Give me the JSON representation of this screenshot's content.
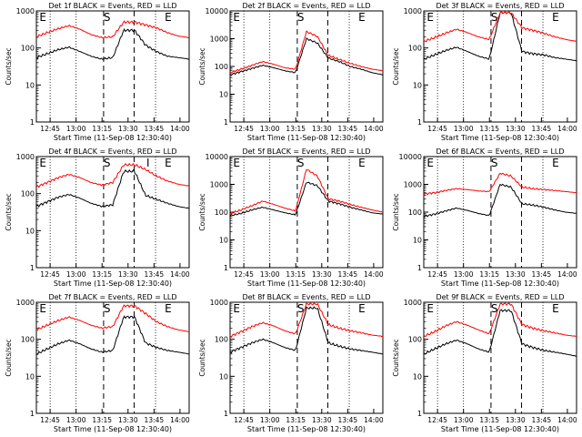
{
  "chart_data": [
    {
      "type": "line",
      "title": "Det 1f BLACK = Events, RED = LLD",
      "xlabel": "Start Time (11-Sep-08 12:30:40)",
      "ylabel": "Counts/sec",
      "ylim": [
        1,
        1000
      ],
      "yscale": "log",
      "xticklabels": [
        "12:45",
        "13:00",
        "13:15",
        "13:30",
        "13:45",
        "14:00"
      ],
      "yticklabels": [
        "1",
        "10",
        "100",
        "1000"
      ],
      "markers": [
        "E",
        "S",
        "E"
      ],
      "series": [
        {
          "color": "#000000",
          "values": [
            55,
            70,
            90,
            105,
            80,
            60,
            50,
            55,
            300,
            300,
            120,
            80,
            60,
            55,
            50
          ]
        },
        {
          "color": "#ff0000",
          "values": [
            200,
            260,
            330,
            400,
            320,
            230,
            190,
            200,
            500,
            500,
            420,
            350,
            260,
            210,
            190
          ]
        }
      ]
    },
    {
      "type": "line",
      "title": "Det 2f BLACK = Events, RED = LLD",
      "xlabel": "Start Time (11-Sep-08 12:30:40)",
      "ylabel": "Counts/sec",
      "ylim": [
        1,
        10000
      ],
      "yscale": "log",
      "xticklabels": [
        "12:45",
        "13:00",
        "13:15",
        "13:30",
        "13:45",
        "14:00"
      ],
      "yticklabels": [
        "1",
        "10",
        "100",
        "1000",
        "10000"
      ],
      "markers": [
        "E",
        "S",
        "E"
      ],
      "series": [
        {
          "color": "#000000",
          "values": [
            50,
            65,
            85,
            110,
            90,
            70,
            60,
            1000,
            700,
            200,
            150,
            100,
            80,
            60,
            50
          ]
        },
        {
          "color": "#ff0000",
          "values": [
            60,
            80,
            110,
            150,
            120,
            90,
            80,
            1800,
            1200,
            250,
            180,
            130,
            100,
            80,
            70
          ]
        }
      ]
    },
    {
      "type": "line",
      "title": "Det 3f BLACK = Events, RED = LLD",
      "xlabel": "Start Time (11-Sep-08 12:30:40)",
      "ylabel": "Counts/sec",
      "ylim": [
        1,
        1000
      ],
      "yscale": "log",
      "xticklabels": [
        "12:45",
        "13:00",
        "13:15",
        "13:30",
        "13:45",
        "14:00"
      ],
      "yticklabels": [
        "1",
        "10",
        "100",
        "1000"
      ],
      "markers": [
        "E",
        "S",
        "E"
      ],
      "series": [
        {
          "color": "#000000",
          "values": [
            50,
            65,
            85,
            105,
            80,
            60,
            50,
            900,
            900,
            80,
            70,
            65,
            55,
            50,
            45
          ]
        },
        {
          "color": "#ff0000",
          "values": [
            150,
            190,
            250,
            320,
            260,
            200,
            170,
            900,
            900,
            350,
            300,
            250,
            200,
            170,
            150
          ]
        }
      ]
    },
    {
      "type": "line",
      "title": "Det 4f BLACK = Events, RED = LLD",
      "xlabel": "Start Time (11-Sep-08 12:30:40)",
      "ylabel": "Counts/sec",
      "ylim": [
        1,
        1000
      ],
      "yscale": "log",
      "xticklabels": [
        "12:45",
        "13:00",
        "13:15",
        "13:30",
        "13:45",
        "14:00"
      ],
      "yticklabels": [
        "1",
        "10",
        "100",
        "1000"
      ],
      "markers": [
        "E",
        "S",
        "I",
        "E"
      ],
      "series": [
        {
          "color": "#000000",
          "values": [
            45,
            60,
            80,
            95,
            75,
            55,
            45,
            50,
            400,
            400,
            90,
            70,
            55,
            45,
            40
          ]
        },
        {
          "color": "#ff0000",
          "values": [
            150,
            200,
            270,
            330,
            270,
            200,
            170,
            200,
            600,
            600,
            450,
            300,
            220,
            180,
            160
          ]
        }
      ]
    },
    {
      "type": "line",
      "title": "Det 5f BLACK = Events, RED = LLD",
      "xlabel": "Start Time (11-Sep-08 12:30:40)",
      "ylabel": "Counts/sec",
      "ylim": [
        1,
        10000
      ],
      "yscale": "log",
      "xticklabels": [
        "12:45",
        "13:00",
        "13:15",
        "13:30",
        "13:45",
        "14:00"
      ],
      "yticklabels": [
        "1",
        "10",
        "100",
        "1000",
        "10000"
      ],
      "markers": [
        "E",
        "S",
        "E"
      ],
      "series": [
        {
          "color": "#000000",
          "values": [
            75,
            90,
            120,
            150,
            120,
            95,
            80,
            1200,
            900,
            250,
            200,
            150,
            120,
            95,
            85
          ]
        },
        {
          "color": "#ff0000",
          "values": [
            90,
            120,
            170,
            250,
            190,
            140,
            110,
            3500,
            2000,
            300,
            250,
            190,
            150,
            120,
            100
          ]
        }
      ]
    },
    {
      "type": "line",
      "title": "Det 6f BLACK = Events, RED = LLD",
      "xlabel": "Start Time (11-Sep-08 12:30:40)",
      "ylabel": "Counts/sec",
      "ylim": [
        1,
        10000
      ],
      "yscale": "log",
      "xticklabels": [
        "12:45",
        "13:00",
        "13:15",
        "13:30",
        "13:45",
        "14:00"
      ],
      "yticklabels": [
        "1",
        "10",
        "100",
        "1000",
        "10000"
      ],
      "markers": [
        "E",
        "S",
        "E"
      ],
      "series": [
        {
          "color": "#000000",
          "values": [
            70,
            85,
            110,
            140,
            115,
            90,
            75,
            1000,
            800,
            200,
            180,
            150,
            120,
            100,
            90
          ]
        },
        {
          "color": "#ff0000",
          "values": [
            450,
            500,
            600,
            700,
            650,
            580,
            550,
            2500,
            2000,
            800,
            700,
            650,
            600,
            550,
            500
          ]
        }
      ]
    },
    {
      "type": "line",
      "title": "Det 7f BLACK = Events, RED = LLD",
      "xlabel": "Start Time (11-Sep-08 12:30:40)",
      "ylabel": "Counts/sec",
      "ylim": [
        1,
        1000
      ],
      "yscale": "log",
      "xticklabels": [
        "12:45",
        "13:00",
        "13:15",
        "13:30",
        "13:45",
        "14:00"
      ],
      "yticklabels": [
        "1",
        "10",
        "100",
        "1000"
      ],
      "markers": [
        "E",
        "S",
        "E"
      ],
      "series": [
        {
          "color": "#000000",
          "values": [
            40,
            55,
            75,
            95,
            75,
            55,
            45,
            50,
            400,
            400,
            80,
            60,
            50,
            45,
            40
          ]
        },
        {
          "color": "#ff0000",
          "values": [
            180,
            240,
            320,
            400,
            320,
            240,
            200,
            220,
            800,
            800,
            500,
            300,
            220,
            180,
            160
          ]
        }
      ]
    },
    {
      "type": "line",
      "title": "Det 8f BLACK = Events, RED = LLD",
      "xlabel": "Start Time (11-Sep-08 12:30:40)",
      "ylabel": "Counts/sec",
      "ylim": [
        1,
        1000
      ],
      "yscale": "log",
      "xticklabels": [
        "12:45",
        "13:00",
        "13:15",
        "13:30",
        "13:45",
        "14:00"
      ],
      "yticklabels": [
        "1",
        "10",
        "100",
        "1000"
      ],
      "markers": [
        "E",
        "S",
        "E"
      ],
      "series": [
        {
          "color": "#000000",
          "values": [
            45,
            60,
            80,
            100,
            80,
            60,
            50,
            700,
            700,
            80,
            65,
            55,
            50,
            45,
            40
          ]
        },
        {
          "color": "#ff0000",
          "values": [
            120,
            160,
            220,
            280,
            230,
            170,
            140,
            900,
            900,
            250,
            200,
            170,
            150,
            130,
            120
          ]
        }
      ]
    },
    {
      "type": "line",
      "title": "Det 9f BLACK = Events, RED = LLD",
      "xlabel": "Start Time (11-Sep-08 12:30:40)",
      "ylabel": "Counts/sec",
      "ylim": [
        1,
        1000
      ],
      "yscale": "log",
      "xticklabels": [
        "12:45",
        "13:00",
        "13:15",
        "13:30",
        "13:45",
        "14:00"
      ],
      "yticklabels": [
        "1",
        "10",
        "100",
        "1000"
      ],
      "markers": [
        "E",
        "S",
        "E"
      ],
      "series": [
        {
          "color": "#000000",
          "values": [
            40,
            55,
            75,
            95,
            75,
            55,
            45,
            600,
            600,
            75,
            60,
            50,
            45,
            40,
            35
          ]
        },
        {
          "color": "#ff0000",
          "values": [
            120,
            160,
            230,
            300,
            240,
            180,
            140,
            900,
            900,
            250,
            200,
            170,
            150,
            130,
            120
          ]
        }
      ]
    }
  ]
}
